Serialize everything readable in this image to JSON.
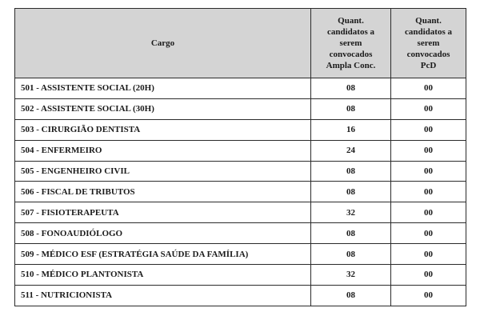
{
  "table": {
    "columns": [
      {
        "label": "Cargo"
      },
      {
        "label": "Quant.\ncandidatos a\nserem\nconvocados\nAmpla Conc."
      },
      {
        "label": "Quant.\ncandidatos a\nserem\nconvocados\nPcD"
      }
    ],
    "rows": [
      {
        "cargo": "501 - ASSISTENTE SOCIAL (20H)",
        "ampla": "08",
        "pcd": "00"
      },
      {
        "cargo": "502 - ASSISTENTE SOCIAL (30H)",
        "ampla": "08",
        "pcd": "00"
      },
      {
        "cargo": "503 - CIRURGIÃO DENTISTA",
        "ampla": "16",
        "pcd": "00"
      },
      {
        "cargo": "504 - ENFERMEIRO",
        "ampla": "24",
        "pcd": "00"
      },
      {
        "cargo": "505 - ENGENHEIRO CIVIL",
        "ampla": "08",
        "pcd": "00"
      },
      {
        "cargo": "506 - FISCAL DE TRIBUTOS",
        "ampla": "08",
        "pcd": "00"
      },
      {
        "cargo": "507 - FISIOTERAPEUTA",
        "ampla": "32",
        "pcd": "00"
      },
      {
        "cargo": "508 - FONOAUDIÓLOGO",
        "ampla": "08",
        "pcd": "00"
      },
      {
        "cargo": "509 - MÉDICO ESF (ESTRATÉGIA SAÚDE DA FAMÍLIA)",
        "ampla": "08",
        "pcd": "00"
      },
      {
        "cargo": "510 - MÉDICO PLANTONISTA",
        "ampla": "32",
        "pcd": "00"
      },
      {
        "cargo": "511 - NUTRICIONISTA",
        "ampla": "08",
        "pcd": "00"
      }
    ]
  },
  "colors": {
    "header_bg": "#d4d4d4",
    "border": "#2b2b2b",
    "text": "#1b1b1b"
  }
}
